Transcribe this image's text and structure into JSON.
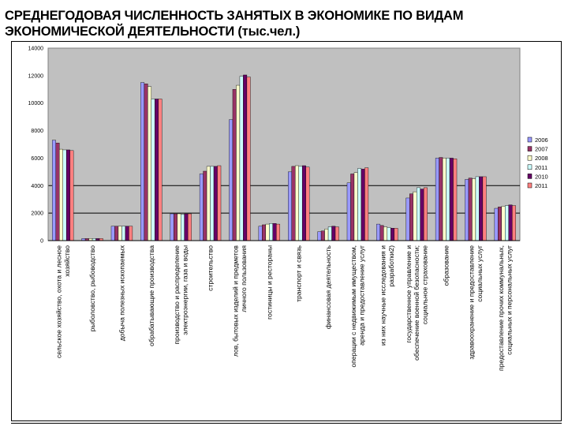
{
  "page": {
    "title_line1": "СРЕДНЕГОДОВАЯ ЧИСЛЕННОСТЬ ЗАНЯТЫХ В ЭКОНОМИКЕ ПО ВИДАМ",
    "title_line2": "ЭКОНОМИЧЕСКОЙ ДЕЯТЕЛЬНОСТИ",
    "title_units": "(тыс.чел.)"
  },
  "colors": {
    "plot_bg": "#c0c0c0",
    "series": [
      "#9999ff",
      "#993366",
      "#ffffcc",
      "#ccffff",
      "#660066",
      "#ff8080"
    ]
  },
  "chart_data": {
    "type": "bar",
    "title": "СРЕДНЕГОДОВАЯ ЧИСЛЕННОСТЬ ЗАНЯТЫХ В ЭКОНОМИКЕ ПО ВИДАМ ЭКОНОМИЧЕСКОЙ ДЕЯТЕЛЬНОСТИ (тыс.чел.)",
    "xlabel": "",
    "ylabel": "",
    "ylim": [
      0,
      14000
    ],
    "yticks": [
      0,
      2000,
      4000,
      6000,
      8000,
      10000,
      12000,
      14000
    ],
    "grid": "horizontal",
    "legend_position": "right",
    "categories": [
      [
        "сельское хозяйство, охота   и лесное",
        "хозяйство"
      ],
      [
        "рыболовство, рыбоводство"
      ],
      [
        "добыча полезных   ископаемых"
      ],
      [
        "обрабатывающие   производства"
      ],
      [
        "производство и   распределение",
        "электроэнергии, газа и   воды"
      ],
      [
        "строительство"
      ],
      [
        "лов, бытовых изделий и предметов",
        "личного пользования"
      ],
      [
        "гостиницы и рестораны"
      ],
      [
        "транспорт и связь"
      ],
      [
        "финансовая деятельность"
      ],
      [
        "операции с недвижимым имуществом,",
        "аренда  и предоставление услуг"
      ],
      [
        "из них научные исследования и",
        "разработки2)"
      ],
      [
        "государственное управление и",
        "обеспечение военной безопасности;",
        "социальное страхование"
      ],
      [
        "образование"
      ],
      [
        "здравоохранение и предоставление",
        "социальных услуг"
      ],
      [
        "предоставление прочих коммунальных,",
        "социальных и персональных услуг"
      ]
    ],
    "series": [
      {
        "name": "2006",
        "values": [
          7300,
          150,
          1050,
          11500,
          1950,
          4850,
          8800,
          1050,
          5000,
          650,
          4200,
          1200,
          3100,
          6000,
          4450,
          2350
        ]
      },
      {
        "name": "2007",
        "values": [
          7100,
          150,
          1050,
          11400,
          1950,
          5050,
          11000,
          1150,
          5400,
          700,
          4850,
          1100,
          3400,
          6050,
          4550,
          2450
        ]
      },
      {
        "name": "2008",
        "values": [
          6650,
          150,
          1050,
          11200,
          1950,
          5400,
          11300,
          1200,
          5450,
          850,
          4950,
          1000,
          3550,
          6000,
          4500,
          2500
        ]
      },
      {
        "name": "2011",
        "values": [
          6600,
          150,
          1050,
          10300,
          1900,
          5400,
          11950,
          1250,
          5400,
          1000,
          5250,
          950,
          3850,
          6000,
          4650,
          2550
        ]
      },
      {
        "name": "2010",
        "values": [
          6600,
          150,
          1050,
          10300,
          1950,
          5400,
          12050,
          1250,
          5450,
          1050,
          5200,
          900,
          3750,
          6000,
          4650,
          2600
        ]
      },
      {
        "name": "2011",
        "values": [
          6550,
          150,
          1050,
          10300,
          1950,
          5450,
          11900,
          1200,
          5350,
          1000,
          5300,
          900,
          3850,
          5950,
          4650,
          2550
        ]
      }
    ]
  }
}
